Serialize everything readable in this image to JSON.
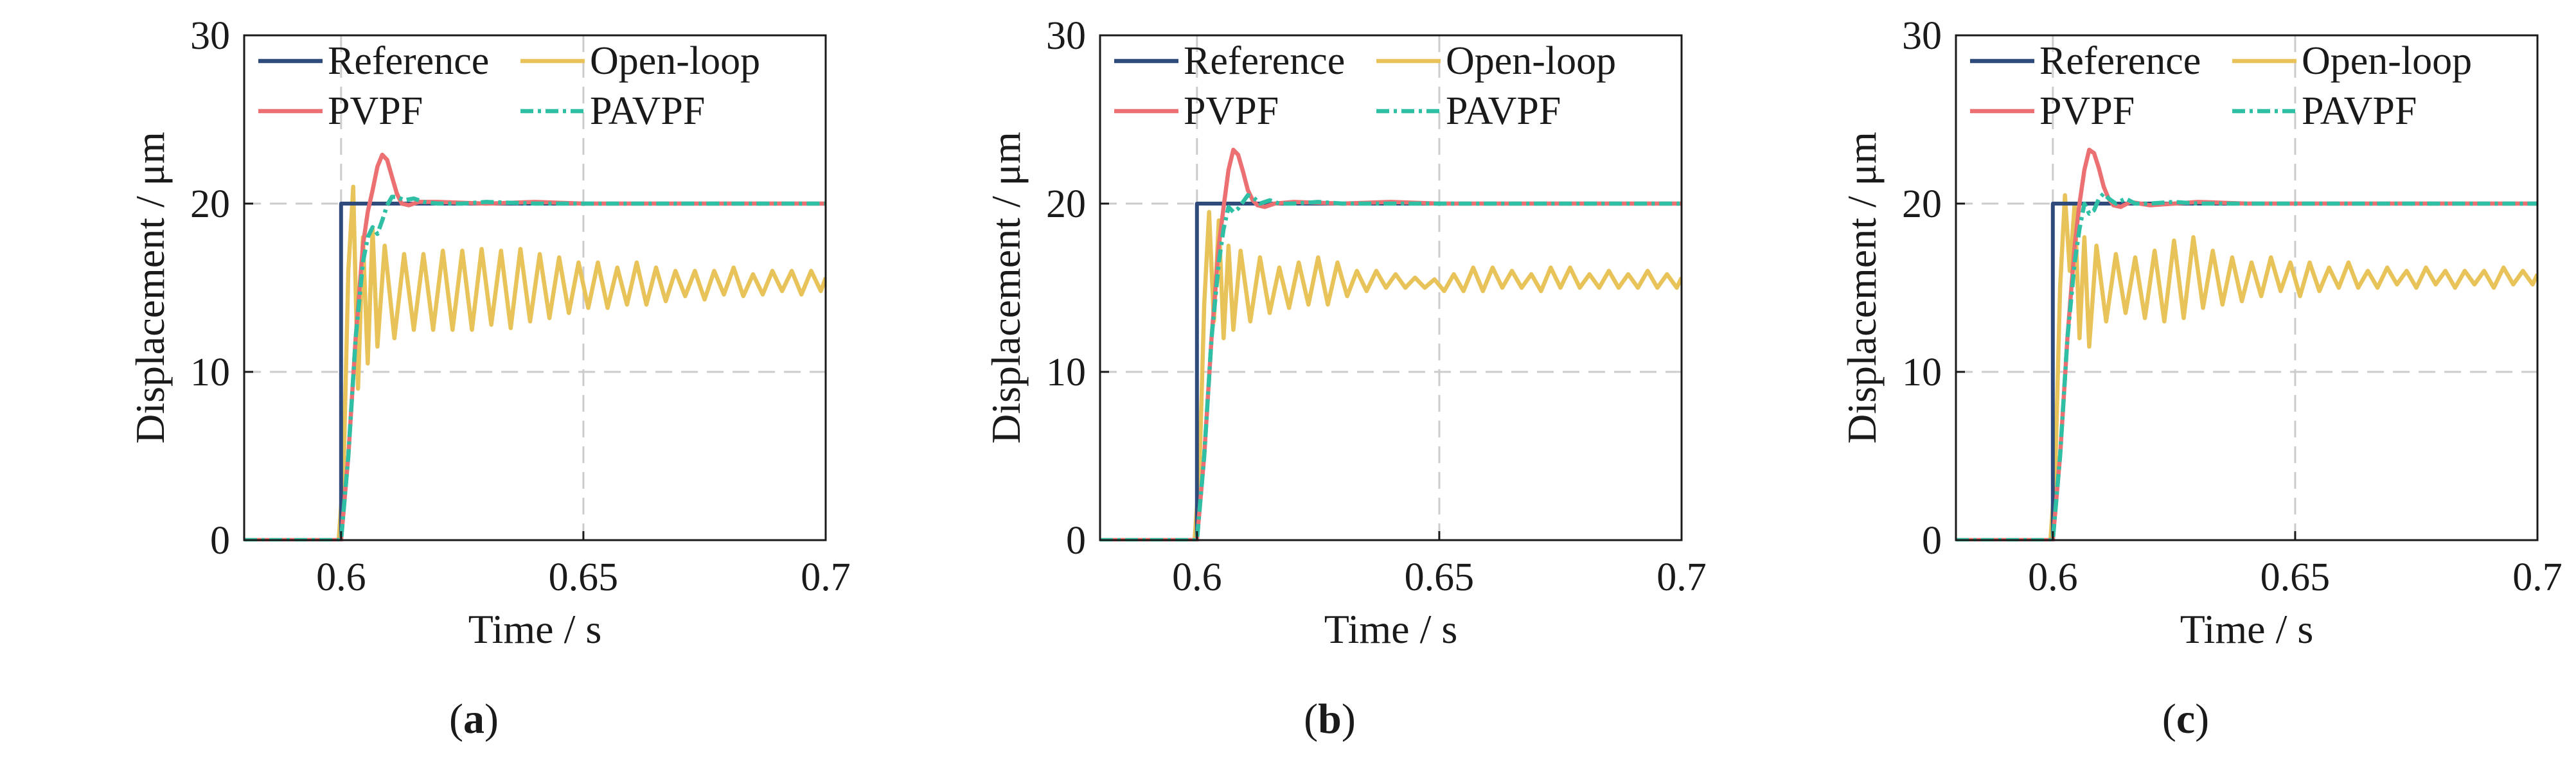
{
  "figure": {
    "colors": {
      "reference": "#2f4b7c",
      "open_loop": "#e8c35a",
      "pvpf": "#ec6f72",
      "pavpf": "#2ebfa5",
      "grid": "#cccccc",
      "axis": "#1a1a1a"
    }
  },
  "chart_data": [
    {
      "type": "line",
      "panel_label": "(a)",
      "panel_letter": "a",
      "xlabel": "Time / s",
      "ylabel": "Displacement / μm",
      "xlim": [
        0.58,
        0.7
      ],
      "ylim": [
        0,
        30
      ],
      "xticks": [
        0.6,
        0.65,
        0.7
      ],
      "xtick_labels": [
        "0.6",
        "0.65",
        "0.7"
      ],
      "yticks": [
        0,
        10,
        20,
        30
      ],
      "ytick_labels": [
        "0",
        "10",
        "20",
        "30"
      ],
      "grid": true,
      "legend": [
        "Reference",
        "Open-loop",
        "PVPF",
        "PAVPF"
      ],
      "series": [
        {
          "name": "Reference",
          "style": "solid",
          "x": [
            0.58,
            0.6,
            0.6,
            0.7
          ],
          "y": [
            0,
            0,
            20,
            20
          ]
        },
        {
          "name": "Open-loop",
          "style": "solid",
          "x": [
            0.58,
            0.5995,
            0.6005,
            0.6015,
            0.6025,
            0.6035,
            0.6045,
            0.6055,
            0.6065,
            0.6075,
            0.609,
            0.611,
            0.613,
            0.615,
            0.617,
            0.619,
            0.621,
            0.623,
            0.625,
            0.627,
            0.629,
            0.631,
            0.633,
            0.635,
            0.637,
            0.639,
            0.641,
            0.643,
            0.645,
            0.647,
            0.649,
            0.651,
            0.653,
            0.655,
            0.657,
            0.659,
            0.661,
            0.663,
            0.665,
            0.667,
            0.669,
            0.671,
            0.673,
            0.675,
            0.677,
            0.679,
            0.681,
            0.683,
            0.685,
            0.687,
            0.689,
            0.691,
            0.693,
            0.695,
            0.697,
            0.699,
            0.7
          ],
          "y": [
            0,
            0,
            4,
            16,
            21,
            9,
            18,
            10.5,
            18.5,
            11.5,
            17.5,
            12,
            17,
            12.5,
            17,
            12.5,
            17.2,
            12.5,
            17.2,
            12.5,
            17.3,
            12.8,
            17.2,
            12.6,
            17.3,
            13,
            17,
            13.2,
            16.8,
            13.5,
            16.5,
            13.8,
            16.5,
            13.8,
            16.2,
            14,
            16.5,
            14,
            16.2,
            14.2,
            16,
            14.5,
            16,
            14.3,
            16,
            14.6,
            16.2,
            14.5,
            15.8,
            14.6,
            16,
            14.8,
            16,
            14.6,
            16,
            14.8,
            15.6
          ]
        },
        {
          "name": "PVPF",
          "style": "solid",
          "x": [
            0.58,
            0.6,
            0.6015,
            0.603,
            0.6045,
            0.6055,
            0.6065,
            0.6075,
            0.6085,
            0.6095,
            0.6105,
            0.6115,
            0.6125,
            0.614,
            0.616,
            0.62,
            0.63,
            0.64,
            0.65,
            0.66,
            0.7
          ],
          "y": [
            0,
            0,
            5,
            12,
            17.5,
            19.5,
            20.8,
            22.2,
            22.9,
            22.6,
            21.6,
            20.6,
            20.0,
            19.9,
            20.1,
            20.1,
            20.0,
            20.1,
            20.0,
            20.0,
            20.0
          ]
        },
        {
          "name": "PAVPF",
          "style": "dashed",
          "x": [
            0.58,
            0.6,
            0.6015,
            0.603,
            0.6045,
            0.6055,
            0.6065,
            0.6075,
            0.6085,
            0.6095,
            0.6105,
            0.6115,
            0.613,
            0.615,
            0.617,
            0.62,
            0.625,
            0.63,
            0.64,
            0.65,
            0.66,
            0.7
          ],
          "y": [
            0,
            0,
            5,
            12,
            16.5,
            18.0,
            18.6,
            18.2,
            19.0,
            19.9,
            20.4,
            20.4,
            20.2,
            20.3,
            20.1,
            20.0,
            20.0,
            20.1,
            20.0,
            20.0,
            20.0,
            20.0
          ]
        }
      ]
    },
    {
      "type": "line",
      "panel_label": "(b)",
      "panel_letter": "b",
      "xlabel": "Time / s",
      "ylabel": "Displacement / μm",
      "xlim": [
        0.58,
        0.7
      ],
      "ylim": [
        0,
        30
      ],
      "xticks": [
        0.6,
        0.65,
        0.7
      ],
      "xtick_labels": [
        "0.6",
        "0.65",
        "0.7"
      ],
      "yticks": [
        0,
        10,
        20,
        30
      ],
      "ytick_labels": [
        "0",
        "10",
        "20",
        "30"
      ],
      "grid": true,
      "legend": [
        "Reference",
        "Open-loop",
        "PVPF",
        "PAVPF"
      ],
      "series": [
        {
          "name": "Reference",
          "style": "solid",
          "x": [
            0.58,
            0.6,
            0.6,
            0.7
          ],
          "y": [
            0,
            0,
            20,
            20
          ]
        },
        {
          "name": "Open-loop",
          "style": "solid",
          "x": [
            0.58,
            0.5995,
            0.6005,
            0.6015,
            0.6025,
            0.6035,
            0.6045,
            0.6055,
            0.6065,
            0.6075,
            0.609,
            0.611,
            0.613,
            0.615,
            0.617,
            0.619,
            0.621,
            0.623,
            0.625,
            0.627,
            0.629,
            0.631,
            0.633,
            0.635,
            0.637,
            0.639,
            0.641,
            0.643,
            0.645,
            0.647,
            0.649,
            0.651,
            0.653,
            0.655,
            0.657,
            0.659,
            0.661,
            0.663,
            0.665,
            0.667,
            0.669,
            0.671,
            0.673,
            0.675,
            0.677,
            0.679,
            0.681,
            0.683,
            0.685,
            0.687,
            0.689,
            0.691,
            0.693,
            0.695,
            0.697,
            0.699,
            0.7
          ],
          "y": [
            0,
            0,
            4,
            14,
            19.5,
            13,
            19,
            12,
            17.5,
            12.5,
            17.2,
            13,
            16.8,
            13.5,
            16.2,
            13.8,
            16.5,
            14,
            16.8,
            14,
            16.5,
            14.5,
            16,
            14.8,
            16,
            15,
            15.8,
            15,
            15.6,
            15,
            15.5,
            14.8,
            15.8,
            14.8,
            16.2,
            14.8,
            16.2,
            15,
            16,
            15,
            15.8,
            14.8,
            16.2,
            15,
            16.2,
            15,
            15.8,
            15,
            16,
            15,
            15.8,
            15,
            16,
            15,
            15.8,
            15,
            15.6
          ]
        },
        {
          "name": "PVPF",
          "style": "solid",
          "x": [
            0.58,
            0.6,
            0.6015,
            0.603,
            0.6045,
            0.6055,
            0.6065,
            0.6075,
            0.6085,
            0.6095,
            0.6105,
            0.6115,
            0.6125,
            0.614,
            0.616,
            0.62,
            0.63,
            0.64,
            0.65,
            0.66,
            0.7
          ],
          "y": [
            0,
            0,
            5,
            12,
            17.5,
            19.8,
            22.0,
            23.2,
            22.9,
            21.9,
            20.8,
            20.2,
            19.9,
            19.8,
            20.0,
            20.1,
            20.0,
            20.1,
            20.0,
            20.0,
            20.0
          ]
        },
        {
          "name": "PAVPF",
          "style": "dashed",
          "x": [
            0.58,
            0.6,
            0.6015,
            0.603,
            0.6045,
            0.6055,
            0.6065,
            0.6075,
            0.6085,
            0.6095,
            0.6105,
            0.6115,
            0.613,
            0.615,
            0.617,
            0.62,
            0.625,
            0.63,
            0.64,
            0.65,
            0.66,
            0.7
          ],
          "y": [
            0,
            0,
            5,
            12,
            16.5,
            18.5,
            19.8,
            19.5,
            19.7,
            20.1,
            20.5,
            20.4,
            20.0,
            20.2,
            20.0,
            20.0,
            20.1,
            20.0,
            20.0,
            20.0,
            20.0,
            20.0
          ]
        }
      ]
    },
    {
      "type": "line",
      "panel_label": "(c)",
      "panel_letter": "c",
      "xlabel": "Time / s",
      "ylabel": "Displacement / μm",
      "xlim": [
        0.58,
        0.7
      ],
      "ylim": [
        0,
        30
      ],
      "xticks": [
        0.6,
        0.65,
        0.7
      ],
      "xtick_labels": [
        "0.6",
        "0.65",
        "0.7"
      ],
      "yticks": [
        0,
        10,
        20,
        30
      ],
      "ytick_labels": [
        "0",
        "10",
        "20",
        "30"
      ],
      "grid": true,
      "legend": [
        "Reference",
        "Open-loop",
        "PVPF",
        "PAVPF"
      ],
      "series": [
        {
          "name": "Reference",
          "style": "solid",
          "x": [
            0.58,
            0.6,
            0.6,
            0.7
          ],
          "y": [
            0,
            0,
            20,
            20
          ]
        },
        {
          "name": "Open-loop",
          "style": "solid",
          "x": [
            0.58,
            0.5995,
            0.6005,
            0.6015,
            0.6025,
            0.6035,
            0.6045,
            0.6055,
            0.6065,
            0.6075,
            0.609,
            0.611,
            0.613,
            0.615,
            0.617,
            0.619,
            0.621,
            0.623,
            0.625,
            0.627,
            0.629,
            0.631,
            0.633,
            0.635,
            0.637,
            0.639,
            0.641,
            0.643,
            0.645,
            0.647,
            0.649,
            0.651,
            0.653,
            0.655,
            0.657,
            0.659,
            0.661,
            0.663,
            0.665,
            0.667,
            0.669,
            0.671,
            0.673,
            0.675,
            0.677,
            0.679,
            0.681,
            0.683,
            0.685,
            0.687,
            0.689,
            0.691,
            0.693,
            0.695,
            0.697,
            0.699,
            0.7
          ],
          "y": [
            0,
            0,
            4,
            15,
            20.5,
            16,
            20,
            12,
            18,
            11.5,
            17.5,
            13,
            17,
            13.5,
            16.8,
            13.2,
            17.2,
            13,
            17.8,
            13.2,
            18,
            13.8,
            17.2,
            14,
            16.8,
            14.2,
            16.5,
            14.5,
            16.8,
            14.8,
            16.5,
            14.5,
            16.5,
            14.8,
            16.2,
            15,
            16.5,
            15,
            16,
            15,
            16.2,
            15.2,
            16,
            15,
            16.2,
            15.2,
            16,
            15,
            16,
            15.2,
            16,
            15,
            16.2,
            15.2,
            16,
            15.2,
            15.8
          ]
        },
        {
          "name": "PVPF",
          "style": "solid",
          "x": [
            0.58,
            0.6,
            0.6015,
            0.603,
            0.6045,
            0.6055,
            0.6065,
            0.6075,
            0.6085,
            0.6095,
            0.6105,
            0.6115,
            0.6125,
            0.614,
            0.616,
            0.618,
            0.62,
            0.63,
            0.64,
            0.65,
            0.66,
            0.7
          ],
          "y": [
            0,
            0,
            5,
            12,
            17.5,
            20.0,
            22.0,
            23.2,
            23.0,
            22.1,
            21.0,
            20.3,
            19.9,
            19.8,
            20.1,
            20.0,
            19.9,
            20.1,
            20.0,
            20.0,
            20.0,
            20.0
          ]
        },
        {
          "name": "PAVPF",
          "style": "dashed",
          "x": [
            0.58,
            0.6,
            0.6015,
            0.603,
            0.6045,
            0.6055,
            0.6065,
            0.6075,
            0.6085,
            0.6095,
            0.6105,
            0.6115,
            0.613,
            0.615,
            0.617,
            0.62,
            0.625,
            0.63,
            0.64,
            0.65,
            0.66,
            0.7
          ],
          "y": [
            0,
            0,
            5,
            12,
            16.5,
            18.5,
            20.0,
            19.4,
            19.6,
            20.3,
            20.6,
            20.3,
            20.0,
            20.3,
            20.0,
            20.0,
            20.1,
            20.0,
            20.0,
            20.0,
            20.0,
            20.0
          ]
        }
      ]
    }
  ]
}
